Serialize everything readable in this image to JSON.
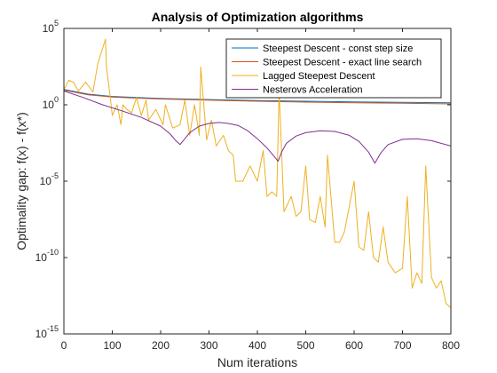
{
  "chart_data": {
    "type": "line",
    "title": "Analysis of Optimization algorithms",
    "xlabel": "Num iterations",
    "ylabel": "Optimality gap: f(x) - f(x*)",
    "xlim": [
      0,
      800
    ],
    "ylim": [
      1e-15,
      100000
    ],
    "yscale": "log",
    "grid": false,
    "legend_position": "top-right",
    "x_ticks": [
      "0",
      "100",
      "200",
      "300",
      "400",
      "500",
      "600",
      "700",
      "800"
    ],
    "y_ticks": [
      {
        "value": 1e-15,
        "base": "10",
        "exp": "-15"
      },
      {
        "value": 1e-10,
        "base": "10",
        "exp": "-10"
      },
      {
        "value": 1e-05,
        "base": "10",
        "exp": "-5"
      },
      {
        "value": 1,
        "base": "10",
        "exp": "0"
      },
      {
        "value": 100000,
        "base": "10",
        "exp": "5"
      }
    ],
    "series": [
      {
        "name": "Steepest Descent - const step size",
        "color": "#0072BD",
        "x": [
          0,
          50,
          100,
          200,
          300,
          400,
          500,
          600,
          700,
          800
        ],
        "y": [
          10,
          5,
          3.5,
          2.6,
          2.2,
          1.9,
          1.7,
          1.55,
          1.45,
          1.35
        ]
      },
      {
        "name": "Steepest Descent - exact line search",
        "color": "#D95319",
        "x": [
          0,
          50,
          100,
          200,
          300,
          400,
          500,
          600,
          700,
          800
        ],
        "y": [
          9,
          4.5,
          3.2,
          2.4,
          2.0,
          1.7,
          1.5,
          1.35,
          1.25,
          1.15
        ]
      },
      {
        "name": "Lagged Steepest Descent",
        "color": "#EDB120",
        "x": [
          0,
          10,
          20,
          30,
          45,
          60,
          70,
          86,
          88,
          95,
          100,
          110,
          118,
          122,
          130,
          140,
          150,
          160,
          170,
          175,
          190,
          205,
          210,
          225,
          240,
          250,
          260,
          270,
          280,
          283,
          295,
          305,
          315,
          330,
          340,
          350,
          355,
          370,
          385,
          400,
          412,
          420,
          430,
          440,
          445,
          455,
          470,
          480,
          490,
          500,
          508,
          520,
          530,
          540,
          545,
          560,
          570,
          580,
          600,
          610,
          620,
          630,
          640,
          650,
          660,
          670,
          685,
          700,
          710,
          720,
          730,
          740,
          748,
          760,
          770,
          780,
          790,
          800
        ],
        "y": [
          10,
          40,
          30,
          8,
          30,
          7,
          500,
          20000,
          300,
          5,
          0.2,
          1,
          0.05,
          1,
          0.5,
          0.3,
          3,
          0.2,
          2,
          0.1,
          0.5,
          0.05,
          1,
          0.03,
          0.05,
          2,
          0.01,
          1,
          0.01,
          300,
          0.005,
          0.1,
          0.002,
          0.01,
          0.001,
          0.0005,
          1e-05,
          1e-05,
          0.0001,
          1e-05,
          0.001,
          1e-06,
          2e-06,
          1e-06,
          10,
          1e-07,
          1e-06,
          5e-08,
          1e-07,
          0.0001,
          3e-08,
          2e-08,
          1e-06,
          1e-08,
          0.0005,
          1e-09,
          1e-09,
          5e-09,
          1e-05,
          5e-10,
          3e-10,
          1e-07,
          1e-10,
          5e-11,
          1e-08,
          5e-11,
          1e-11,
          2e-11,
          1e-06,
          1e-12,
          1e-11,
          2e-12,
          0.0001,
          5e-12,
          1e-12,
          3e-12,
          1e-13,
          5e-14
        ]
      },
      {
        "name": "Nesterovs Acceleration",
        "color": "#7E2F8E",
        "x": [
          0,
          40,
          80,
          120,
          160,
          200,
          220,
          230,
          240,
          250,
          260,
          280,
          300,
          320,
          340,
          360,
          380,
          400,
          420,
          435,
          443,
          450,
          460,
          480,
          500,
          530,
          560,
          590,
          610,
          630,
          643,
          655,
          670,
          700,
          730,
          760,
          800
        ],
        "y": [
          8,
          3,
          1,
          0.4,
          0.15,
          0.04,
          0.012,
          0.005,
          0.0025,
          0.006,
          0.015,
          0.04,
          0.06,
          0.07,
          0.06,
          0.045,
          0.02,
          0.006,
          0.0015,
          0.0004,
          0.0002,
          0.0008,
          0.003,
          0.009,
          0.015,
          0.02,
          0.018,
          0.01,
          0.004,
          0.0008,
          0.00015,
          0.0007,
          0.0025,
          0.0055,
          0.006,
          0.0045,
          0.002
        ]
      }
    ]
  }
}
